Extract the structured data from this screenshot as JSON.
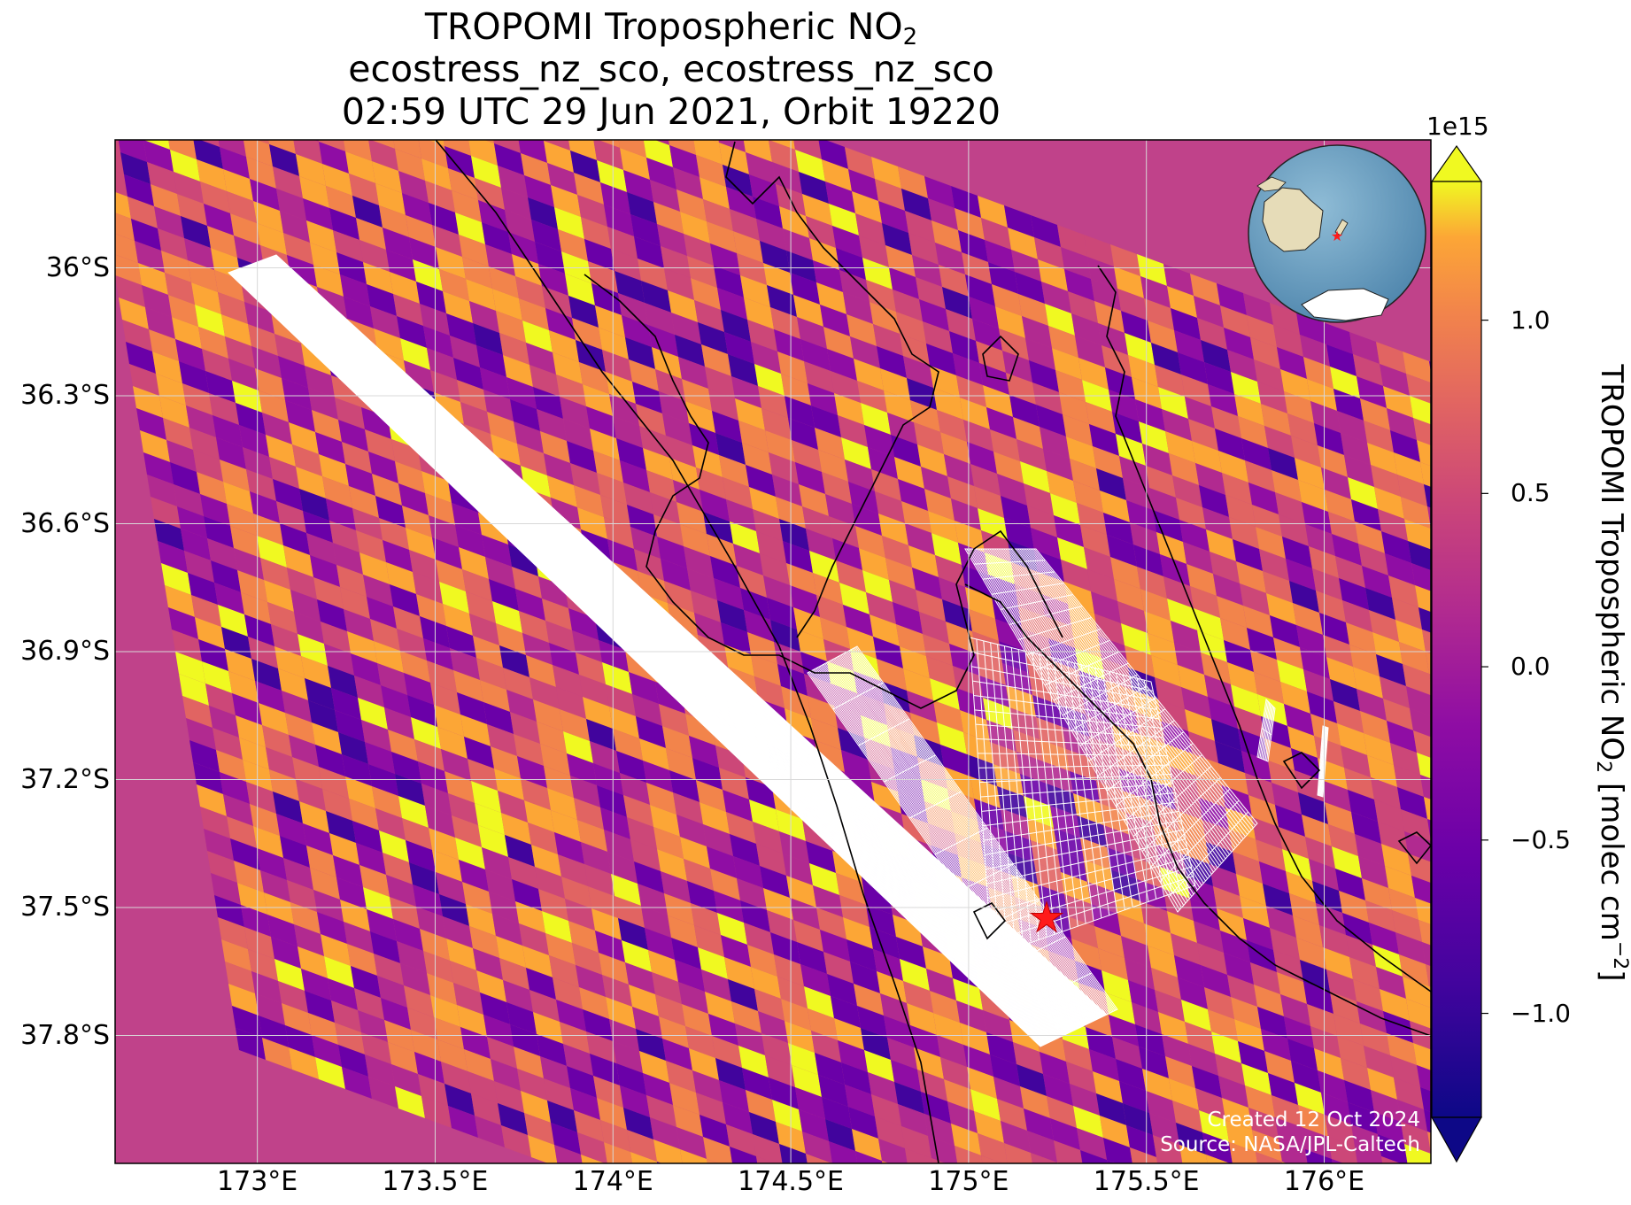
{
  "title": {
    "line1_main": "TROPOMI Tropospheric NO",
    "line1_sub": "2",
    "line2": "ecostress_nz_sco, ecostress_nz_sco",
    "line3": "02:59 UTC 29 Jun 2021, Orbit 19220"
  },
  "axes": {
    "lat_labels": [
      "36°S",
      "36.3°S",
      "36.6°S",
      "36.9°S",
      "37.2°S",
      "37.5°S",
      "37.8°S"
    ],
    "lat_values": [
      -36.0,
      -36.3,
      -36.6,
      -36.9,
      -37.2,
      -37.5,
      -37.8
    ],
    "lon_labels": [
      "173°E",
      "173.5°E",
      "174°E",
      "174.5°E",
      "175°E",
      "175.5°E",
      "176°E"
    ],
    "lon_values": [
      173.0,
      173.5,
      174.0,
      174.5,
      175.0,
      175.5,
      176.0
    ],
    "lon_range": [
      172.6,
      176.3
    ],
    "lat_range": [
      -38.1,
      -35.7
    ],
    "grid": true
  },
  "colorbar": {
    "exponent": "1e15",
    "label_main": "TROPOMI Tropospheric NO",
    "label_sub": "2",
    "label_units": " [molec cm",
    "label_sup": "−2",
    "label_close": "]",
    "tick_labels": [
      "1.0",
      "0.5",
      "0.0",
      "−0.5",
      "−1.0"
    ],
    "tick_values": [
      1.0,
      0.5,
      0.0,
      -0.5,
      -1.0
    ],
    "range": [
      -1.3,
      1.4
    ],
    "colormap": "plasma",
    "extend": "both"
  },
  "marker": {
    "lon": 175.22,
    "lat": -37.46,
    "color": "#ff1a1a",
    "icon": "star-icon"
  },
  "inset": {
    "type": "globe-locator",
    "icon": "globe-icon",
    "marker_color": "#ff1a1a"
  },
  "credits": {
    "created": "Created 12 Oct 2024",
    "source": "Source: NASA/JPL-Caltech"
  },
  "colors": {
    "grid": "#d8d8d8",
    "coastline": "#000000",
    "footprint": "#ffffff"
  }
}
